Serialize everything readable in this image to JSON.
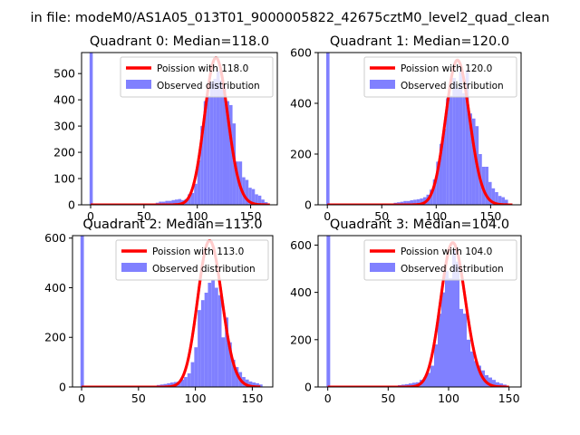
{
  "suptitle": "in file: modeM0/AS1A05_013T01_9000005822_42675cztM0_level2_quad_clean",
  "legend_labels": {
    "observed": "Observed distribution"
  },
  "colors": {
    "poisson": "#ff0000",
    "hist": "#8080ff",
    "axis": "#000000",
    "bg": "#ffffff"
  },
  "chart_data": [
    {
      "type": "bar",
      "title": "Quadrant 0: Median=118.0",
      "xlabel": "",
      "ylabel": "",
      "xlim": [
        -8.5,
        175
      ],
      "ylim": [
        0,
        580
      ],
      "xticks": [
        0,
        50,
        100,
        150
      ],
      "yticks": [
        0,
        100,
        200,
        300,
        400,
        500
      ],
      "legend_location": "top-right",
      "grid": false,
      "series": [
        {
          "name": "Observed distribution",
          "kind": "histogram",
          "bins": [
            [
              -1,
              2,
              580
            ],
            [
              58,
              61,
              5
            ],
            [
              61,
              64,
              8
            ],
            [
              64,
              67,
              12
            ],
            [
              67,
              70,
              12
            ],
            [
              70,
              73,
              15
            ],
            [
              73,
              76,
              15
            ],
            [
              76,
              79,
              18
            ],
            [
              79,
              82,
              20
            ],
            [
              82,
              85,
              22
            ],
            [
              85,
              88,
              18
            ],
            [
              88,
              91,
              22
            ],
            [
              91,
              94,
              40
            ],
            [
              94,
              97,
              45
            ],
            [
              97,
              100,
              80
            ],
            [
              100,
              103,
              170
            ],
            [
              103,
              106,
              300
            ],
            [
              106,
              109,
              395
            ],
            [
              109,
              112,
              415
            ],
            [
              112,
              115,
              470
            ],
            [
              115,
              118,
              480
            ],
            [
              118,
              121,
              510
            ],
            [
              121,
              124,
              475
            ],
            [
              124,
              127,
              450
            ],
            [
              127,
              130,
              395
            ],
            [
              130,
              133,
              380
            ],
            [
              133,
              136,
              310
            ],
            [
              136,
              139,
              165
            ],
            [
              139,
              142,
              165
            ],
            [
              142,
              145,
              105
            ],
            [
              145,
              148,
              95
            ],
            [
              148,
              151,
              65
            ],
            [
              151,
              154,
              60
            ],
            [
              154,
              157,
              40
            ],
            [
              157,
              160,
              35
            ],
            [
              160,
              163,
              20
            ],
            [
              163,
              166,
              10
            ]
          ]
        },
        {
          "name": "Poission with 118.0",
          "kind": "poisson",
          "lambda": 118.0,
          "peak": 560,
          "x_range": [
            0,
            168
          ]
        }
      ]
    },
    {
      "type": "bar",
      "title": "Quadrant 1: Median=120.0",
      "xlabel": "",
      "ylabel": "",
      "xlim": [
        -8.5,
        178
      ],
      "ylim": [
        0,
        600
      ],
      "xticks": [
        0,
        50,
        100,
        150
      ],
      "yticks": [
        0,
        200,
        400,
        600
      ],
      "legend_location": "top-right",
      "grid": false,
      "series": [
        {
          "name": "Observed distribution",
          "kind": "histogram",
          "bins": [
            [
              -1,
              2,
              600
            ],
            [
              58,
              61,
              5
            ],
            [
              61,
              64,
              8
            ],
            [
              64,
              67,
              10
            ],
            [
              67,
              70,
              12
            ],
            [
              70,
              73,
              15
            ],
            [
              73,
              76,
              15
            ],
            [
              76,
              79,
              18
            ],
            [
              79,
              82,
              20
            ],
            [
              82,
              85,
              22
            ],
            [
              85,
              88,
              25
            ],
            [
              88,
              91,
              30
            ],
            [
              91,
              94,
              40
            ],
            [
              94,
              97,
              60
            ],
            [
              97,
              100,
              100
            ],
            [
              100,
              103,
              170
            ],
            [
              103,
              106,
              240
            ],
            [
              106,
              109,
              300
            ],
            [
              109,
              112,
              420
            ],
            [
              112,
              115,
              430
            ],
            [
              115,
              118,
              500
            ],
            [
              118,
              121,
              460
            ],
            [
              121,
              124,
              540
            ],
            [
              124,
              127,
              440
            ],
            [
              127,
              130,
              530
            ],
            [
              130,
              133,
              360
            ],
            [
              133,
              136,
              340
            ],
            [
              136,
              139,
              310
            ],
            [
              139,
              142,
              200
            ],
            [
              142,
              145,
              150
            ],
            [
              145,
              148,
              150
            ],
            [
              148,
              151,
              90
            ],
            [
              151,
              154,
              65
            ],
            [
              154,
              157,
              50
            ],
            [
              157,
              160,
              35
            ],
            [
              160,
              163,
              30
            ],
            [
              163,
              166,
              20
            ]
          ]
        },
        {
          "name": "Poission with 120.0",
          "kind": "poisson",
          "lambda": 120.0,
          "peak": 570,
          "x_range": [
            0,
            170
          ]
        }
      ]
    },
    {
      "type": "bar",
      "title": "Quadrant 2: Median=113.0",
      "xlabel": "",
      "ylabel": "",
      "xlim": [
        -8,
        168
      ],
      "ylim": [
        0,
        610
      ],
      "xticks": [
        0,
        50,
        100,
        150
      ],
      "yticks": [
        0,
        200,
        400,
        600
      ],
      "legend_location": "top-right",
      "grid": false,
      "series": [
        {
          "name": "Observed distribution",
          "kind": "histogram",
          "bins": [
            [
              -1,
              2,
              610
            ],
            [
              63,
              66,
              5
            ],
            [
              66,
              69,
              8
            ],
            [
              69,
              72,
              10
            ],
            [
              72,
              75,
              12
            ],
            [
              75,
              78,
              15
            ],
            [
              78,
              81,
              18
            ],
            [
              81,
              84,
              20
            ],
            [
              84,
              87,
              22
            ],
            [
              87,
              90,
              30
            ],
            [
              90,
              93,
              40
            ],
            [
              93,
              96,
              55
            ],
            [
              96,
              99,
              100
            ],
            [
              99,
              102,
              160
            ],
            [
              102,
              105,
              310
            ],
            [
              105,
              108,
              350
            ],
            [
              108,
              111,
              380
            ],
            [
              111,
              114,
              420
            ],
            [
              114,
              117,
              430
            ],
            [
              117,
              120,
              400
            ],
            [
              120,
              123,
              370
            ],
            [
              123,
              126,
              200
            ],
            [
              126,
              129,
              280
            ],
            [
              129,
              132,
              180
            ],
            [
              132,
              135,
              110
            ],
            [
              135,
              138,
              80
            ],
            [
              138,
              141,
              60
            ],
            [
              141,
              144,
              40
            ],
            [
              144,
              147,
              30
            ],
            [
              147,
              150,
              22
            ],
            [
              150,
              153,
              18
            ],
            [
              153,
              156,
              15
            ],
            [
              156,
              159,
              10
            ]
          ]
        },
        {
          "name": "Poission with 113.0",
          "kind": "poisson",
          "lambda": 113.0,
          "peak": 590,
          "x_range": [
            0,
            157
          ]
        }
      ]
    },
    {
      "type": "bar",
      "title": "Quadrant 3: Median=104.0",
      "xlabel": "",
      "ylabel": "",
      "xlim": [
        -8,
        160
      ],
      "ylim": [
        0,
        640
      ],
      "xticks": [
        0,
        50,
        100,
        150
      ],
      "yticks": [
        0,
        200,
        400,
        600
      ],
      "legend_location": "top-right",
      "grid": false,
      "series": [
        {
          "name": "Observed distribution",
          "kind": "histogram",
          "bins": [
            [
              -1,
              2,
              640
            ],
            [
              55,
              58,
              5
            ],
            [
              58,
              61,
              8
            ],
            [
              61,
              64,
              10
            ],
            [
              64,
              67,
              12
            ],
            [
              67,
              70,
              15
            ],
            [
              70,
              73,
              18
            ],
            [
              73,
              76,
              20
            ],
            [
              76,
              79,
              30
            ],
            [
              79,
              82,
              40
            ],
            [
              82,
              85,
              60
            ],
            [
              85,
              88,
              90
            ],
            [
              88,
              91,
              180
            ],
            [
              91,
              94,
              310
            ],
            [
              94,
              97,
              400
            ],
            [
              97,
              100,
              490
            ],
            [
              100,
              103,
              460
            ],
            [
              103,
              106,
              580
            ],
            [
              106,
              109,
              530
            ],
            [
              109,
              112,
              330
            ],
            [
              112,
              115,
              310
            ],
            [
              115,
              118,
              200
            ],
            [
              118,
              121,
              150
            ],
            [
              121,
              124,
              110
            ],
            [
              124,
              127,
              90
            ],
            [
              127,
              130,
              70
            ],
            [
              130,
              133,
              50
            ],
            [
              133,
              136,
              40
            ],
            [
              136,
              139,
              30
            ],
            [
              139,
              142,
              20
            ],
            [
              142,
              145,
              15
            ],
            [
              145,
              148,
              10
            ]
          ]
        },
        {
          "name": "Poission with 104.0",
          "kind": "poisson",
          "lambda": 104.0,
          "peak": 610,
          "x_range": [
            0,
            150
          ]
        }
      ]
    }
  ]
}
